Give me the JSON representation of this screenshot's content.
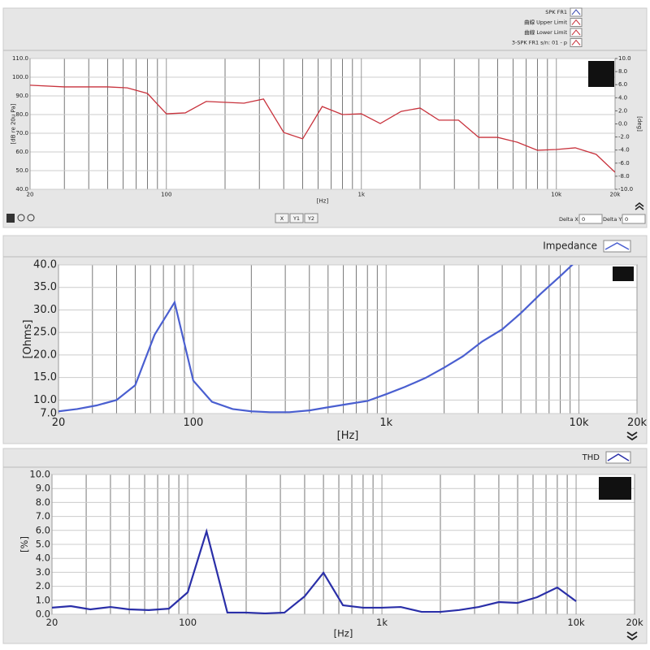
{
  "chart_data": [
    {
      "type": "line",
      "xscale": "log",
      "xlabel": "[Hz]",
      "ylabel": "[dB re 20u Pa]",
      "y2label": "[deg]",
      "legend": [
        "SPK FR1",
        "曲線 Upper Limit",
        "曲線 Lower Limit",
        "3-SPK FR1 s/n: 01 - p"
      ],
      "xlim": [
        20,
        20000
      ],
      "xticks": [
        20,
        100,
        {
          "value": 1000,
          "label": "1k"
        },
        {
          "value": 10000,
          "label": "10k"
        },
        {
          "value": 20000,
          "label": "20k"
        }
      ],
      "xminor": [
        30,
        40,
        50,
        60,
        70,
        80,
        90,
        200,
        300,
        400,
        500,
        600,
        700,
        800,
        900,
        2000,
        3000,
        4000,
        5000,
        6000,
        7000,
        8000,
        9000
      ],
      "ylim": [
        40,
        110
      ],
      "yticks": [
        {
          "value": 110,
          "label": "110.0"
        },
        {
          "value": 100,
          "label": "100.0"
        },
        {
          "value": 90,
          "label": "90.0"
        },
        {
          "value": 80,
          "label": "80.0"
        },
        {
          "value": 70,
          "label": "70.0"
        },
        {
          "value": 60,
          "label": "60.0"
        },
        {
          "value": 50,
          "label": "50.0"
        },
        {
          "value": 40,
          "label": "40.0"
        }
      ],
      "y2lim": [
        -10,
        10
      ],
      "y2ticks": [
        {
          "value": 10,
          "label": "10.0"
        },
        {
          "value": 8,
          "label": "8.0"
        },
        {
          "value": 6,
          "label": "6.0"
        },
        {
          "value": 4,
          "label": "4.0"
        },
        {
          "value": 2,
          "label": "2.0"
        },
        {
          "value": 0,
          "label": "0.0"
        },
        {
          "value": -2,
          "label": "-2.0"
        },
        {
          "value": -4,
          "label": "-4.0"
        },
        {
          "value": -6,
          "label": "-6.0"
        },
        {
          "value": -8,
          "label": "-8.0"
        },
        {
          "value": -10,
          "label": "-10.0"
        }
      ],
      "grid": true,
      "x": [
        20,
        30,
        50,
        63,
        80,
        100,
        125,
        160,
        250,
        315,
        400,
        500,
        630,
        800,
        1000,
        1250,
        1600,
        2000,
        2500,
        3150,
        4000,
        5000,
        6300,
        8000,
        10000,
        12500,
        16000,
        20000
      ],
      "series": [
        {
          "color": "#c8323c",
          "values": [
            95.7,
            94.8,
            94.8,
            94.3,
            91.3,
            80.4,
            80.9,
            87,
            86.1,
            88.3,
            70.4,
            67,
            84.3,
            80,
            80.4,
            75.2,
            81.7,
            83.5,
            77,
            77,
            67.8,
            67.8,
            65.2,
            60.9,
            61.3,
            62.2,
            58.7,
            49.1
          ]
        }
      ]
    },
    {
      "type": "line",
      "xscale": "log",
      "xlabel": "[Hz]",
      "ylabel": "[Ohms]",
      "xlim": [
        20,
        20000
      ],
      "xticks": [
        20,
        100,
        {
          "value": 1000,
          "label": "1k"
        },
        {
          "value": 10000,
          "label": "10k"
        },
        {
          "value": 20000,
          "label": "20k"
        }
      ],
      "xminor": [
        30,
        40,
        50,
        60,
        70,
        80,
        90,
        200,
        300,
        400,
        500,
        600,
        700,
        800,
        900,
        2000,
        3000,
        4000,
        5000,
        6000,
        7000,
        8000,
        9000
      ],
      "ylim": [
        7,
        40
      ],
      "yticks": [
        {
          "value": 40,
          "label": "40.0"
        },
        {
          "value": 35,
          "label": "35.0"
        },
        {
          "value": 30,
          "label": "30.0"
        },
        {
          "value": 25,
          "label": "25.0"
        },
        {
          "value": 20,
          "label": "20.0"
        },
        {
          "value": 15,
          "label": "15.0"
        },
        {
          "value": 10,
          "label": "10.0"
        },
        {
          "value": 7,
          "label": "7.0"
        }
      ],
      "grid": true,
      "x": [
        20,
        25,
        31.5,
        40,
        50,
        63,
        80,
        100,
        125,
        160,
        200,
        250,
        315,
        400,
        500,
        630,
        800,
        1000,
        1250,
        1600,
        2000,
        2500,
        3150,
        4000,
        5000,
        6300,
        8000,
        10000
      ],
      "series": [
        {
          "name": "Impedance",
          "color": "#4a5fd0",
          "values": [
            7.5,
            8.0,
            8.8,
            10,
            13.3,
            24.5,
            31.7,
            14.3,
            9.6,
            8.0,
            7.5,
            7.3,
            7.3,
            7.7,
            8.4,
            9.1,
            9.8,
            11.3,
            12.9,
            14.9,
            17.2,
            19.7,
            23,
            25.7,
            29.3,
            33.5,
            37.5,
            41.4
          ]
        }
      ]
    },
    {
      "type": "line",
      "xscale": "log",
      "xlabel": "[Hz]",
      "ylabel": "[%]",
      "xlim": [
        20,
        20000
      ],
      "xticks": [
        20,
        100,
        {
          "value": 1000,
          "label": "1k"
        },
        {
          "value": 10000,
          "label": "10k"
        },
        {
          "value": 20000,
          "label": "20k"
        }
      ],
      "xminor": [
        30,
        40,
        50,
        60,
        70,
        80,
        90,
        200,
        300,
        400,
        500,
        600,
        700,
        800,
        900,
        2000,
        3000,
        4000,
        5000,
        6000,
        7000,
        8000,
        9000
      ],
      "ylim": [
        0,
        10
      ],
      "yticks": [
        {
          "value": 10,
          "label": "10.0"
        },
        {
          "value": 9,
          "label": "9.0"
        },
        {
          "value": 8,
          "label": "8.0"
        },
        {
          "value": 7,
          "label": "7.0"
        },
        {
          "value": 6,
          "label": "6.0"
        },
        {
          "value": 5,
          "label": "5.0"
        },
        {
          "value": 4,
          "label": "4.0"
        },
        {
          "value": 3,
          "label": "3.0"
        },
        {
          "value": 2,
          "label": "2.0"
        },
        {
          "value": 1,
          "label": "1.0"
        },
        {
          "value": 0,
          "label": "0.0"
        }
      ],
      "grid": true,
      "x": [
        20,
        25,
        31.5,
        40,
        50,
        63,
        80,
        100,
        125,
        160,
        200,
        250,
        315,
        400,
        500,
        630,
        800,
        1000,
        1250,
        1600,
        2000,
        2500,
        3150,
        4000,
        5000,
        6300,
        8000,
        10000
      ],
      "series": [
        {
          "name": "THD",
          "color": "#2a2fa8",
          "values": [
            0.47,
            0.58,
            0.35,
            0.52,
            0.35,
            0.3,
            0.4,
            1.57,
            5.93,
            0.12,
            0.12,
            0.06,
            0.12,
            1.28,
            2.97,
            0.64,
            0.47,
            0.47,
            0.52,
            0.17,
            0.17,
            0.3,
            0.52,
            0.87,
            0.81,
            1.22,
            1.92,
            0.93
          ]
        }
      ]
    }
  ],
  "controls": {
    "buttons": [
      "X",
      "Y1",
      "Y2"
    ],
    "delta_x_label": "Delta X",
    "delta_x": 0,
    "delta_y_label": "Delta Y",
    "delta_y": 0
  }
}
